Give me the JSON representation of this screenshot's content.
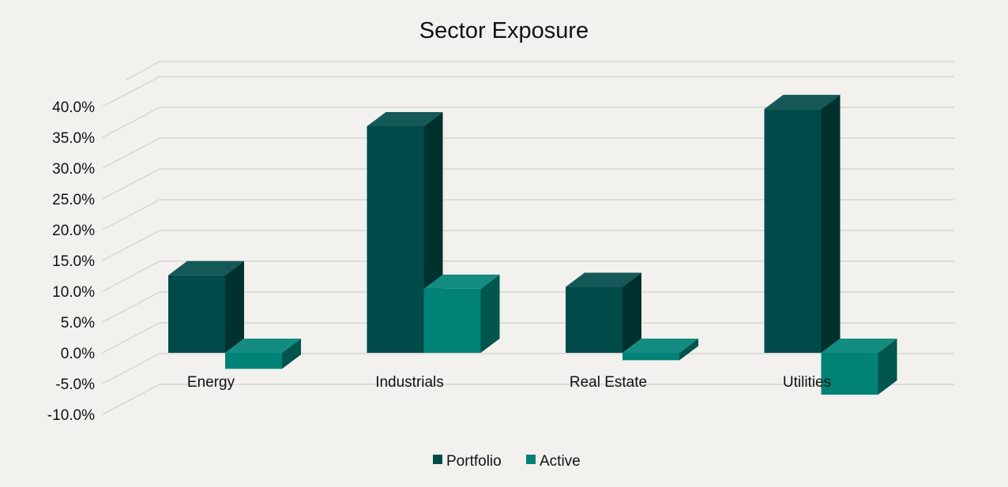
{
  "chart_data": {
    "type": "bar",
    "title": "Sector Exposure",
    "xlabel": "",
    "ylabel": "",
    "categories": [
      "Energy",
      "Industrials",
      "Real Estate",
      "Utilities"
    ],
    "series": [
      {
        "name": "Portfolio",
        "values": [
          12.6,
          36.8,
          10.7,
          39.6
        ],
        "color": "#004b49"
      },
      {
        "name": "Active",
        "values": [
          -2.6,
          10.4,
          -1.2,
          -6.8
        ],
        "color": "#008276"
      }
    ],
    "ylim": [
      -10,
      40
    ],
    "yticks": [
      "-10.0%",
      "-5.0%",
      "0.0%",
      "5.0%",
      "10.0%",
      "15.0%",
      "20.0%",
      "25.0%",
      "30.0%",
      "35.0%",
      "40.0%"
    ],
    "grid": true,
    "legend": "bottom",
    "style": "3d-clustered-column"
  }
}
